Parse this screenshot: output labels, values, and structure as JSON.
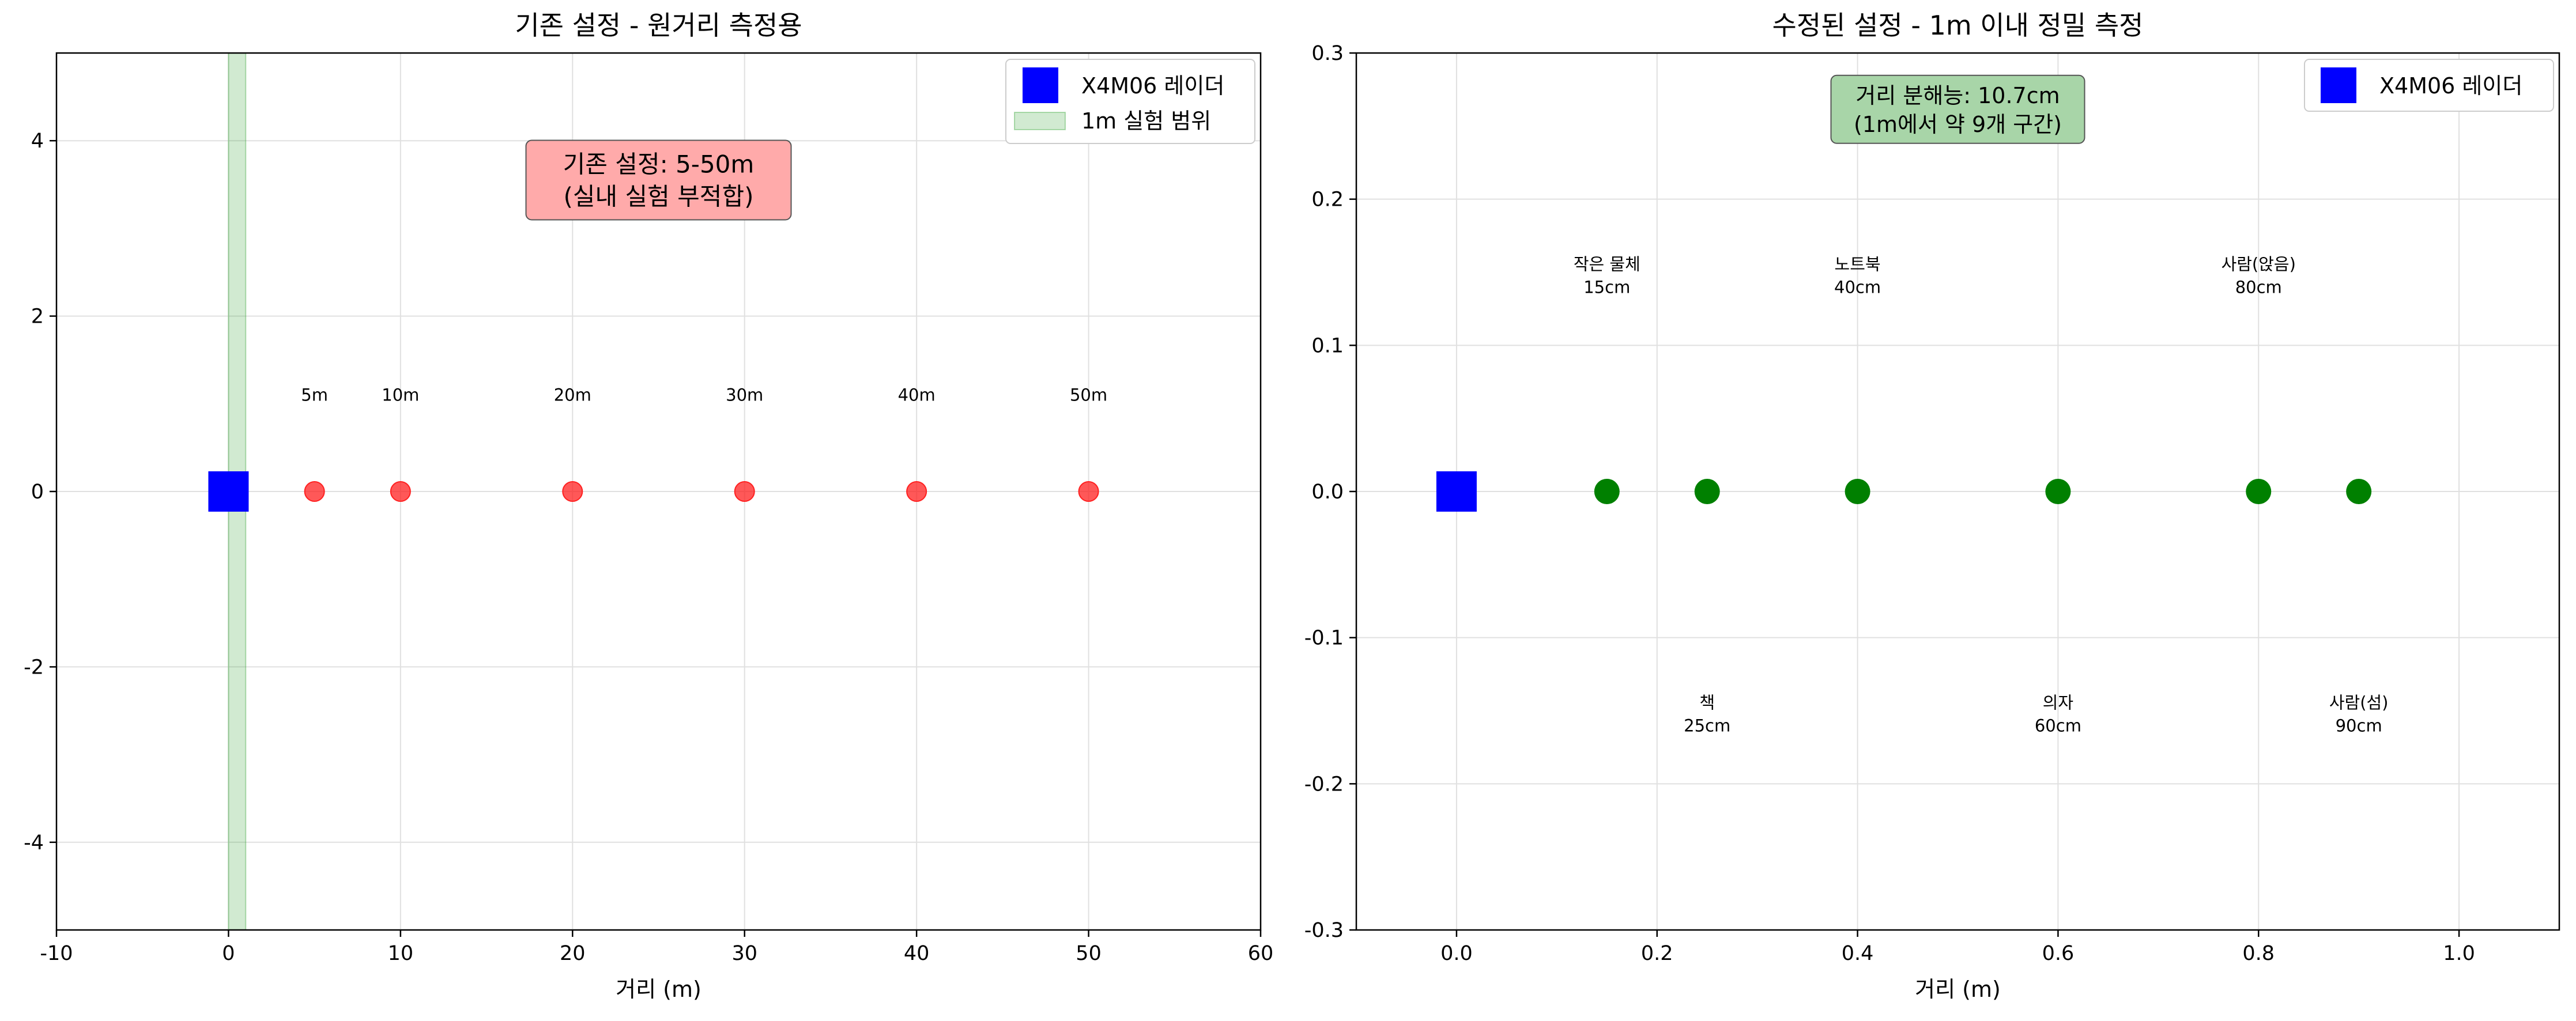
{
  "chart_data": [
    {
      "type": "scatter",
      "title": "기존 설정 - 원거리 측정용",
      "xlabel": "거리 (m)",
      "ylabel": "",
      "xlim": [
        -10,
        60
      ],
      "ylim": [
        -5,
        5
      ],
      "xticks": [
        -10,
        0,
        10,
        20,
        30,
        40,
        50,
        60
      ],
      "xtick_labels": [
        "-10",
        "0",
        "10",
        "20",
        "30",
        "40",
        "50",
        "60"
      ],
      "yticks": [
        -4,
        -2,
        0,
        2,
        4
      ],
      "ytick_labels": [
        "-4",
        "-2",
        "0",
        "2",
        "4"
      ],
      "grid": true,
      "lidar": {
        "name": "X4M06 레이더",
        "x": 0,
        "y": 0,
        "color": "#0000ff"
      },
      "span": {
        "name": "1m 실험 범위",
        "from": 0,
        "to": 1,
        "color": "#2ca02c"
      },
      "series": [
        {
          "color": "#ff2020",
          "points": [
            {
              "x": 5,
              "y": 0,
              "label": "5m"
            },
            {
              "x": 10,
              "y": 0,
              "label": "10m"
            },
            {
              "x": 20,
              "y": 0,
              "label": "20m"
            },
            {
              "x": 30,
              "y": 0,
              "label": "30m"
            },
            {
              "x": 40,
              "y": 0,
              "label": "40m"
            },
            {
              "x": 50,
              "y": 0,
              "label": "50m"
            }
          ],
          "label_y": 1.1
        }
      ],
      "legend": {
        "placement": "upper-right",
        "entries": [
          "X4M06 레이더",
          "1m 실험 범위"
        ]
      },
      "annotation": {
        "lines": [
          "기존 설정: 5-50m",
          "(실내 실험 부적합)"
        ],
        "x": 25,
        "y": 3.4,
        "bg": "#ffaaaa"
      }
    },
    {
      "type": "scatter",
      "title": "수정된 설정 - 1m 이내 정밀 측정",
      "xlabel": "거리 (m)",
      "ylabel": "",
      "xlim": [
        -0.1,
        1.1
      ],
      "ylim": [
        -0.3,
        0.3
      ],
      "xticks": [
        0.0,
        0.2,
        0.4,
        0.6,
        0.8,
        1.0
      ],
      "xtick_labels": [
        "0.0",
        "0.2",
        "0.4",
        "0.6",
        "0.8",
        "1.0"
      ],
      "yticks": [
        -0.3,
        -0.2,
        -0.1,
        0.0,
        0.1,
        0.2,
        0.3
      ],
      "ytick_labels": [
        "-0.3",
        "-0.2",
        "-0.1",
        "0.0",
        "0.1",
        "0.2",
        "0.3"
      ],
      "grid": true,
      "lidar": {
        "name": "X4M06 레이더",
        "x": 0,
        "y": 0,
        "color": "#0000ff"
      },
      "series": [
        {
          "color": "#008000",
          "points": [
            {
              "x": 0.15,
              "y": 0,
              "label": [
                "작은 물체",
                "15cm"
              ],
              "label_y": 0.15
            },
            {
              "x": 0.25,
              "y": 0,
              "label": [
                "책",
                "25cm"
              ],
              "label_y": -0.15
            },
            {
              "x": 0.4,
              "y": 0,
              "label": [
                "노트북",
                "40cm"
              ],
              "label_y": 0.15
            },
            {
              "x": 0.6,
              "y": 0,
              "label": [
                "의자",
                "60cm"
              ],
              "label_y": -0.15
            },
            {
              "x": 0.8,
              "y": 0,
              "label": [
                "사람(앉음)",
                "80cm"
              ],
              "label_y": 0.15
            },
            {
              "x": 0.9,
              "y": 0,
              "label": [
                "사람(섬)",
                "90cm"
              ],
              "label_y": -0.15
            }
          ]
        }
      ],
      "legend": {
        "placement": "upper-right",
        "entries": [
          "X4M06 레이더"
        ]
      },
      "annotation": {
        "lines": [
          "거리 분해능: 10.7cm",
          "(1m에서 약 9개 구간)"
        ],
        "x": 0.5,
        "y": 0.265,
        "bg": "#a8d5a8"
      }
    }
  ]
}
